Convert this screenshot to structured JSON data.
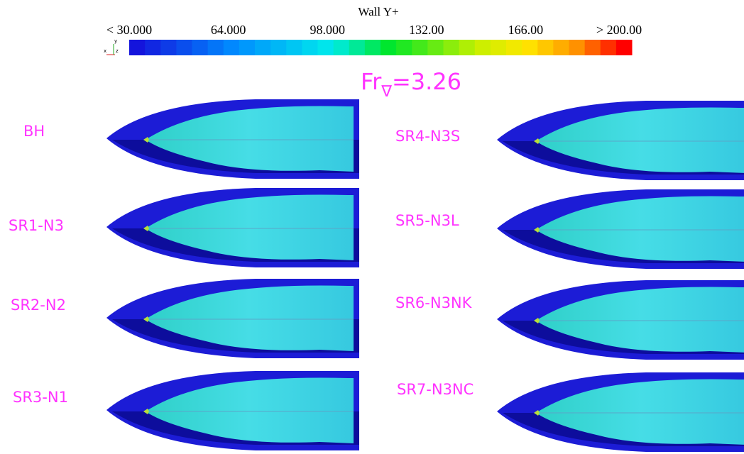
{
  "colorbar": {
    "title": "Wall Y+",
    "labels": [
      "< 30.000",
      "64.000",
      "98.000",
      "132.00",
      "166.00",
      "> 200.00"
    ],
    "axes": [
      "x",
      "y",
      "z"
    ]
  },
  "condition": {
    "base": "Fr",
    "subscript": "∇",
    "value": "=3.26"
  },
  "hulls": {
    "left": [
      "BH",
      "SR1-N3",
      "SR2-N2",
      "SR3-N1"
    ],
    "right": [
      "SR4-N3S",
      "SR5-N3L",
      "SR6-N3NK",
      "SR7-N3NC"
    ]
  }
}
